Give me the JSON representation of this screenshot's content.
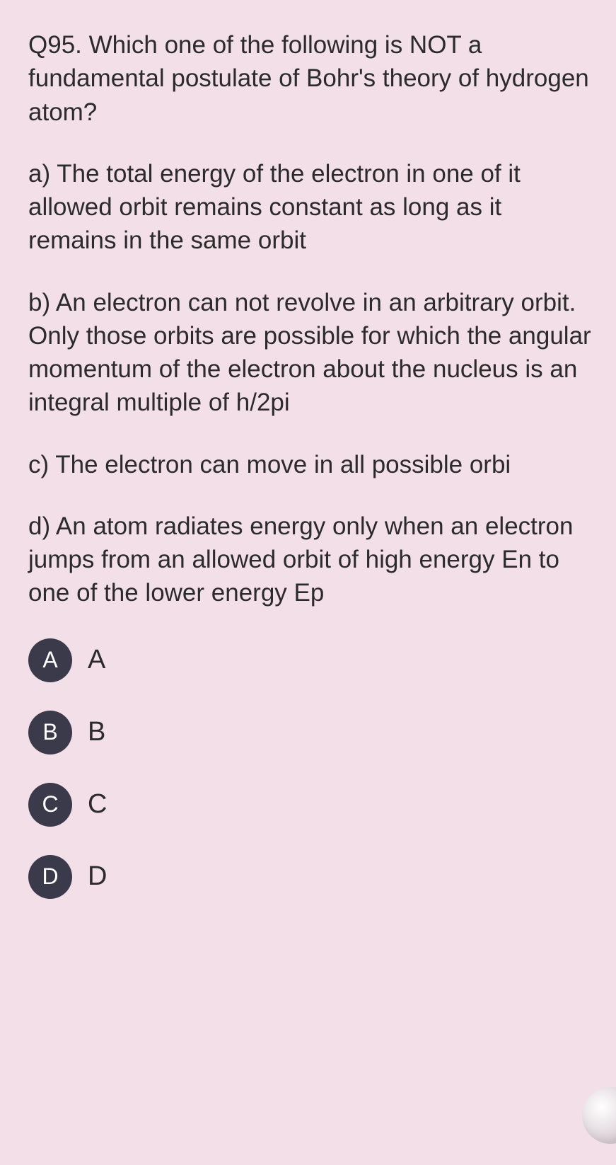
{
  "question": {
    "number": "Q95.",
    "text": "Which one of the following is NOT a fundamental postulate of Bohr's theory of hydrogen atom?"
  },
  "options": {
    "a": {
      "prefix": "a)",
      "text": "The total energy of the electron in one of it allowed orbit remains constant as long as it remains in the same orbit"
    },
    "b": {
      "prefix": "b)",
      "text": "An electron can not revolve in an arbitrary orbit. Only those orbits are possible for which the angular momentum of the electron about the nucleus is an integral multiple of h/2pi"
    },
    "c": {
      "prefix": "c)",
      "text": "The electron can move in all possible orbi"
    },
    "d": {
      "prefix": "d)",
      "text": "An atom radiates energy only when an electron jumps from an allowed orbit of high energy En to one of the lower energy Ep"
    }
  },
  "answers": [
    {
      "badge": "A",
      "label": "A"
    },
    {
      "badge": "B",
      "label": "B"
    },
    {
      "badge": "C",
      "label": "C"
    },
    {
      "badge": "D",
      "label": "D"
    }
  ],
  "colors": {
    "background": "#f2dfe8",
    "text": "#2b2b2b",
    "badge_bg": "#3a3a4a",
    "badge_fg": "#ffffff"
  }
}
